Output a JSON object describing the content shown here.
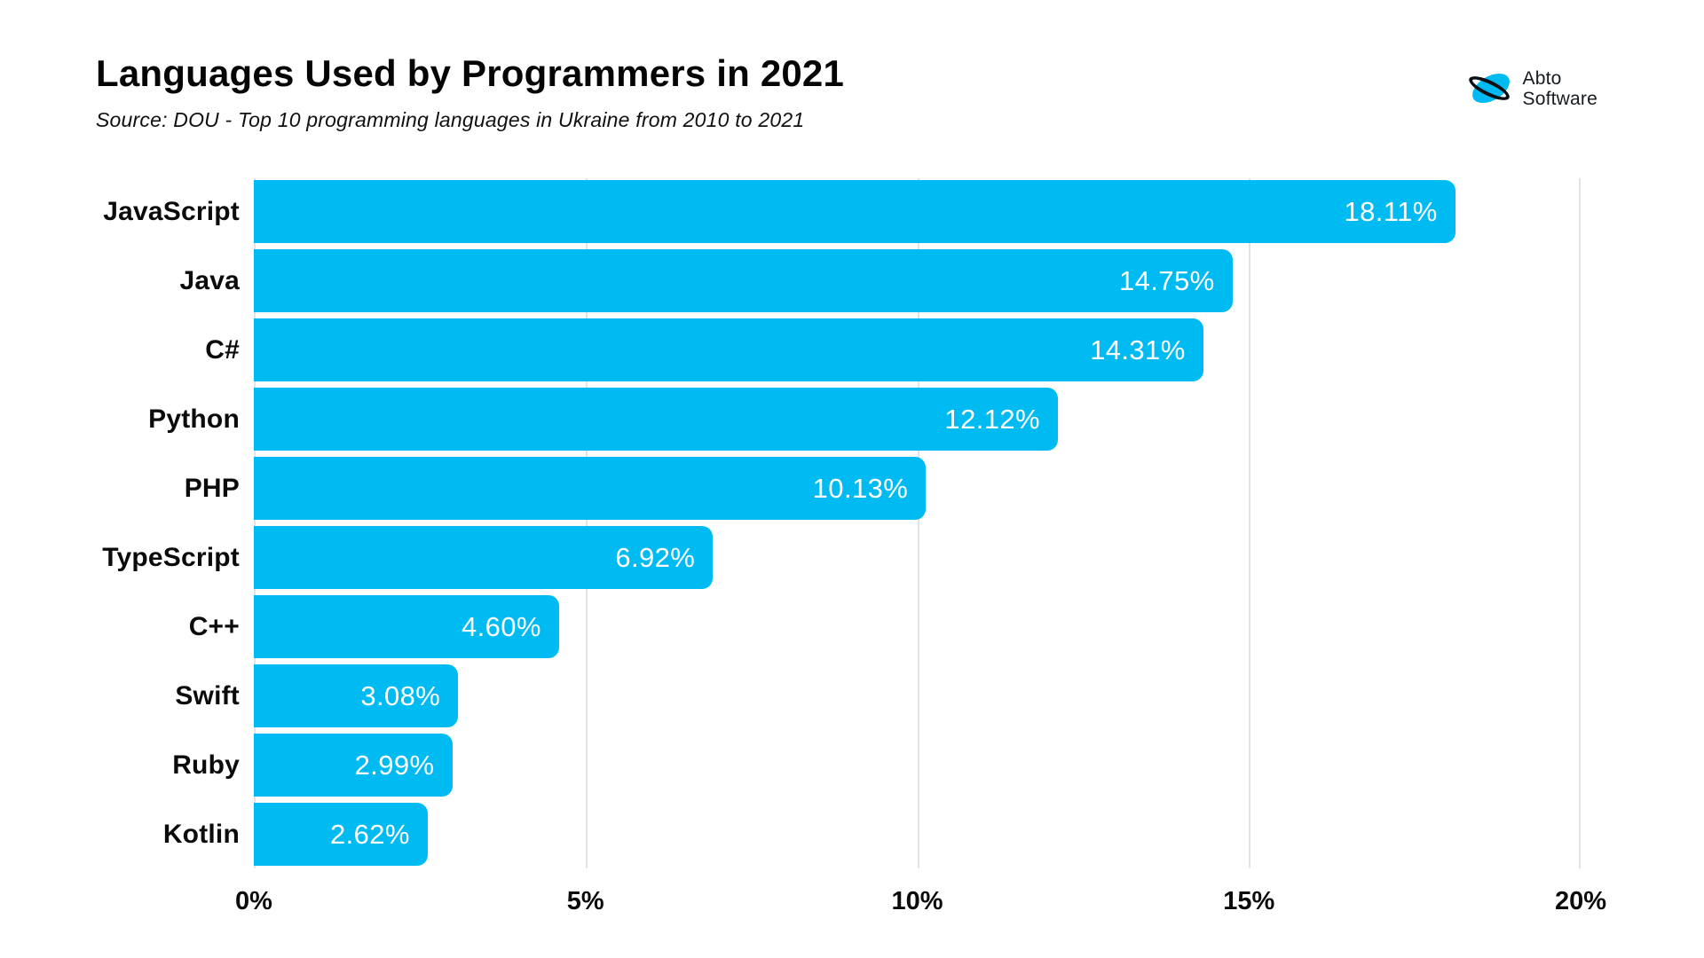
{
  "header": {
    "title": "Languages Used by Programmers in 2021",
    "source": "Source: DOU - Top 10 programming languages in Ukraine from 2010 to 2021"
  },
  "logo": {
    "line1": "Abto",
    "line2": "Software"
  },
  "colors": {
    "bar": "#00BAF2",
    "gridline": "#E3E3E3",
    "title_text": "#050505",
    "value_label_text": "#FFFFFF",
    "logo_blue": "#00BAF2",
    "logo_ring": "#0C0F14"
  },
  "chart_data": {
    "type": "bar",
    "orientation": "horizontal",
    "title": "Languages Used by Programmers in 2021",
    "subtitle": "Source: DOU - Top 10 programming languages in Ukraine from 2010 to 2021",
    "categories": [
      "JavaScript",
      "Java",
      "C#",
      "Python",
      "PHP",
      "TypeScript",
      "C++",
      "Swift",
      "Ruby",
      "Kotlin"
    ],
    "values": [
      18.11,
      14.75,
      14.31,
      12.12,
      10.13,
      6.92,
      4.6,
      3.08,
      2.99,
      2.62
    ],
    "value_labels": [
      "18.11%",
      "14.75%",
      "14.31%",
      "12.12%",
      "10.13%",
      "6.92%",
      "4.60%",
      "3.08%",
      "2.99%",
      "2.62%"
    ],
    "xlabel": "",
    "ylabel": "",
    "xlim": [
      0,
      20
    ],
    "x_ticks": [
      0,
      5,
      10,
      15,
      20
    ],
    "x_tick_labels": [
      "0%",
      "5%",
      "10%",
      "15%",
      "20%"
    ],
    "grid": "vertical",
    "legend": false,
    "value_label_position": "inside-end"
  }
}
